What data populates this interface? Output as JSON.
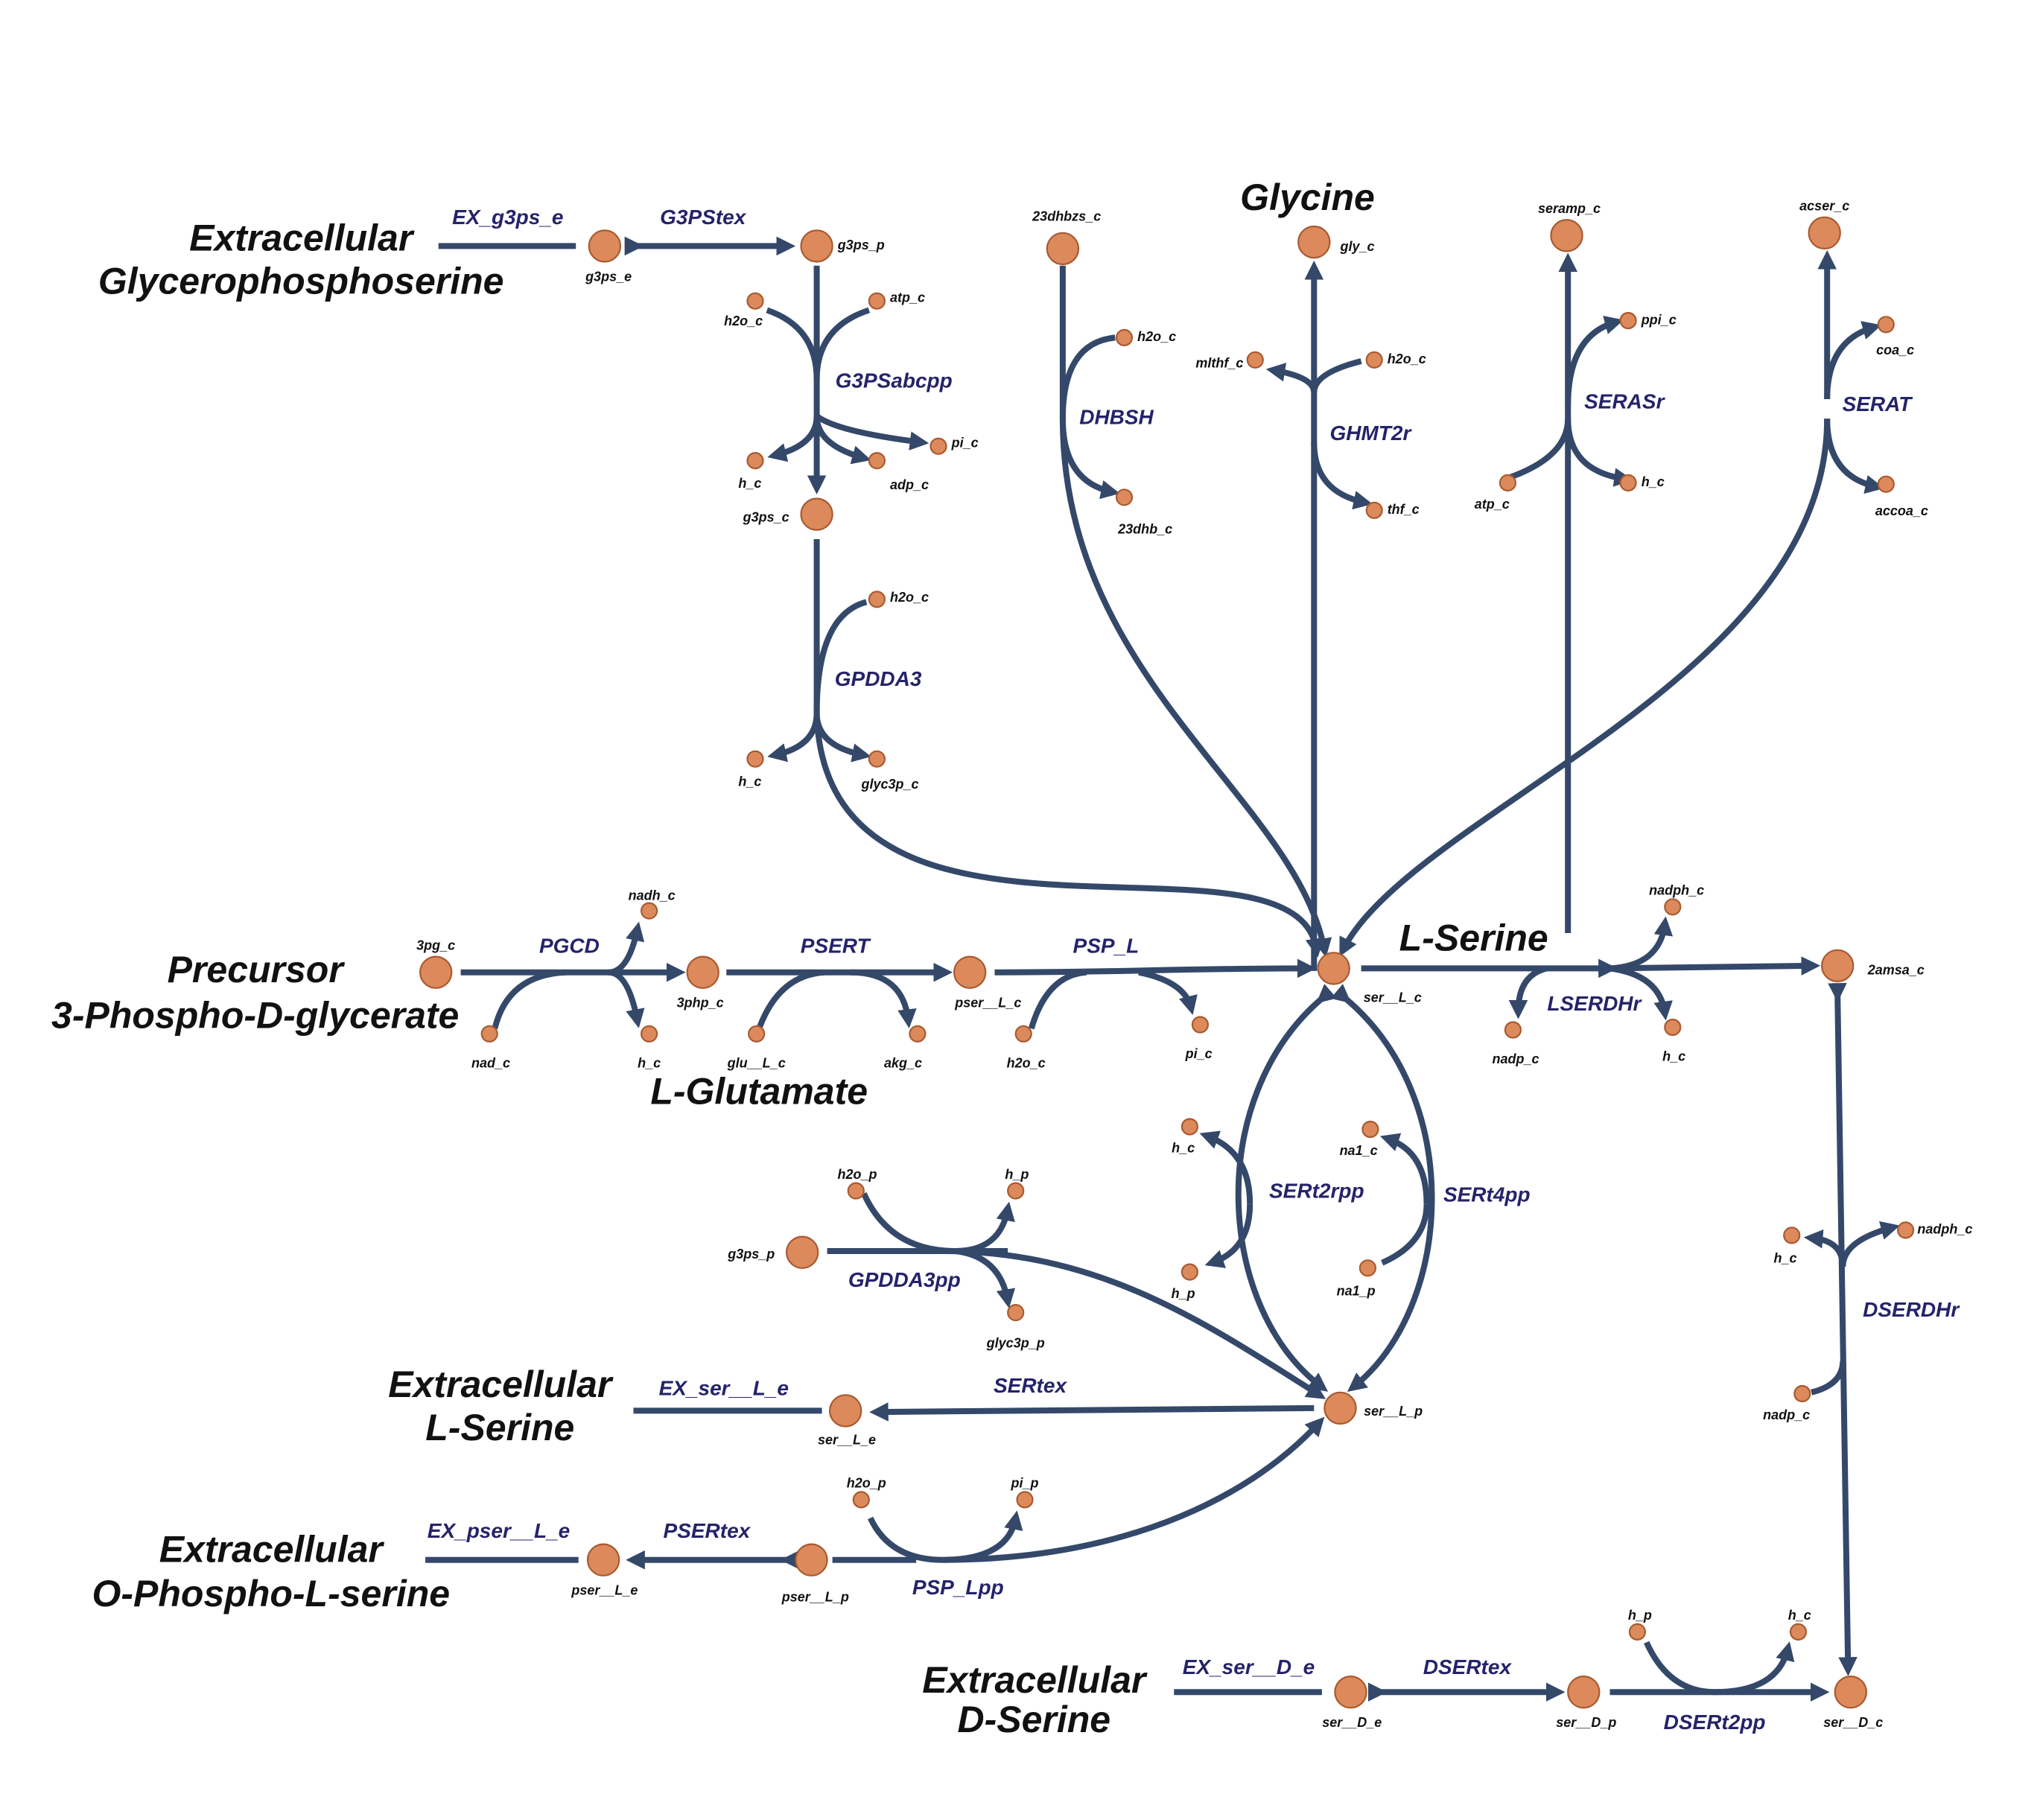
{
  "colors": {
    "edge": "#34486a",
    "node_fill": "#dc8a5c",
    "node_stroke": "#a85a30",
    "reaction_label": "#25236a",
    "title": "#111111"
  },
  "titles": {
    "ext_g3ps": [
      "Extracellular",
      "Glycerophosphoserine"
    ],
    "glycine": [
      "Glycine"
    ],
    "precursor": [
      "Precursor",
      "3-Phospho-D-glycerate"
    ],
    "lserine": [
      "L-Serine"
    ],
    "lglutamate": [
      "L-Glutamate"
    ],
    "ext_lserine": [
      "Extracellular",
      "L-Serine"
    ],
    "ext_pser": [
      "Extracellular",
      "O-Phospho-L-serine"
    ],
    "ext_dserine": [
      "Extracellular",
      "D-Serine"
    ]
  },
  "reactions": {
    "EX_g3ps_e": "EX_g3ps_e",
    "G3PStex": "G3PStex",
    "G3PSabcpp": "G3PSabcpp",
    "GPDDA3": "GPDDA3",
    "DHBSH": "DHBSH",
    "GHMT2r": "GHMT2r",
    "SERASr": "SERASr",
    "SERAT": "SERAT",
    "PGCD": "PGCD",
    "PSERT": "PSERT",
    "PSP_L": "PSP_L",
    "LSERDHr": "LSERDHr",
    "SERt2rpp": "SERt2rpp",
    "SERt4pp": "SERt4pp",
    "GPDDA3pp": "GPDDA3pp",
    "DSERDHr": "DSERDHr",
    "EX_ser__L_e": "EX_ser__L_e",
    "SERtex": "SERtex",
    "EX_pser__L_e": "EX_pser__L_e",
    "PSERtex": "PSERtex",
    "PSP_Lpp": "PSP_Lpp",
    "EX_ser__D_e": "EX_ser__D_e",
    "DSERtex": "DSERtex",
    "DSERt2pp": "DSERt2pp"
  },
  "metabolites": {
    "g3ps_e": "g3ps_e",
    "g3ps_p": "g3ps_p",
    "g3ps_c": "g3ps_c",
    "h2o_c_g3psabc": "h2o_c",
    "atp_c_g3psabc": "atp_c",
    "h_c_g3psabc": "h_c",
    "adp_c": "adp_c",
    "pi_c_g3psabc": "pi_c",
    "h2o_c_gpdda3": "h2o_c",
    "h_c_gpdda3": "h_c",
    "glyc3p_c": "glyc3p_c",
    "23dhbzs_c": "23dhbzs_c",
    "h2o_c_dhbsh": "h2o_c",
    "23dhb_c": "23dhb_c",
    "gly_c": "gly_c",
    "mlthf_c": "mlthf_c",
    "h2o_c_ghmt": "h2o_c",
    "thf_c": "thf_c",
    "seramp_c": "seramp_c",
    "ppi_c": "ppi_c",
    "atp_c_seras": "atp_c",
    "h_c_seras": "h_c",
    "acser_c": "acser_c",
    "coa_c": "coa_c",
    "accoa_c": "accoa_c",
    "3pg_c": "3pg_c",
    "nadh_c": "nadh_c",
    "nad_c": "nad_c",
    "h_c_pgcd": "h_c",
    "3php_c": "3php_c",
    "glu__L_c": "glu__L_c",
    "akg_c": "akg_c",
    "pser__L_c": "pser__L_c",
    "h2o_c_psp": "h2o_c",
    "pi_c_psp": "pi_c",
    "ser__L_c": "ser__L_c",
    "nadph_c_lserdh": "nadph_c",
    "nadp_c_lserdh": "nadp_c",
    "h_c_lserdh": "h_c",
    "2amsa_c": "2amsa_c",
    "h_c_sert2": "h_c",
    "h_p_sert2": "h_p",
    "na1_c": "na1_c",
    "na1_p": "na1_p",
    "h2o_p_gpdda3pp": "h2o_p",
    "h_p_gpdda3pp": "h_p",
    "g3ps_p_2": "g3ps_p",
    "glyc3p_p": "glyc3p_p",
    "h_c_dserdh": "h_c",
    "nadph_c_dserdh": "nadph_c",
    "nadp_c_dserdh": "nadp_c",
    "ser__L_e": "ser__L_e",
    "ser__L_p": "ser__L_p",
    "pser__L_e": "pser__L_e",
    "pser__L_p": "pser__L_p",
    "h2o_p_psplpp": "h2o_p",
    "pi_p": "pi_p",
    "ser__D_e": "ser__D_e",
    "ser__D_p": "ser__D_p",
    "h_p_dsert2": "h_p",
    "h_c_dsert2": "h_c",
    "ser__D_c": "ser__D_c"
  }
}
